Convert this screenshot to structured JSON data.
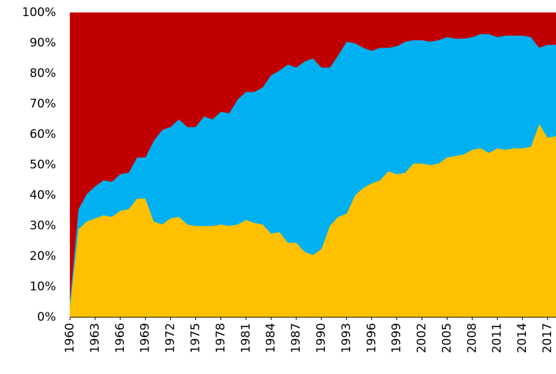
{
  "chart_data": {
    "type": "stacked-area",
    "x": [
      1960,
      1961,
      1962,
      1963,
      1964,
      1965,
      1966,
      1967,
      1968,
      1969,
      1970,
      1971,
      1972,
      1973,
      1974,
      1975,
      1976,
      1977,
      1978,
      1979,
      1980,
      1981,
      1982,
      1983,
      1984,
      1985,
      1986,
      1987,
      1988,
      1989,
      1990,
      1991,
      1992,
      1993,
      1994,
      1995,
      1996,
      1997,
      1998,
      1999,
      2000,
      2001,
      2002,
      2003,
      2004,
      2005,
      2006,
      2007,
      2008,
      2009,
      2010,
      2011,
      2012,
      2013,
      2014,
      2015,
      2016,
      2017,
      2018
    ],
    "series": [
      {
        "color": "#ffc000",
        "values": [
          4,
          29,
          31.5,
          32.5,
          33.5,
          33,
          35,
          35.5,
          39,
          39,
          31.5,
          30.5,
          32.5,
          33,
          30.5,
          30,
          30,
          30,
          30.5,
          30,
          30.5,
          32,
          31,
          30.5,
          27.5,
          28,
          24.5,
          24.5,
          21.5,
          20.5,
          22.5,
          30,
          33,
          34,
          40,
          42.5,
          44,
          45,
          48,
          47,
          47.5,
          50.5,
          50.5,
          50,
          50.5,
          52.5,
          53,
          53.5,
          55,
          55.5,
          54,
          55.5,
          55,
          55.5,
          55.5,
          56,
          63.5,
          59,
          59.5
        ]
      },
      {
        "color": "#00b0f0",
        "values": [
          2,
          6.5,
          9,
          10.5,
          11.5,
          11.5,
          12,
          12,
          13.5,
          13.5,
          26.5,
          31,
          30,
          32,
          32,
          32.5,
          36,
          35,
          37,
          37,
          41,
          42,
          43,
          45,
          52,
          53,
          58.5,
          57.5,
          62.5,
          64.5,
          59.5,
          52,
          53,
          56.5,
          50,
          46,
          43.5,
          43.5,
          40.5,
          42,
          43,
          40.5,
          40.5,
          40.5,
          40.5,
          39.5,
          38.5,
          38,
          37,
          37.5,
          39,
          36.5,
          37.5,
          37,
          37,
          36,
          25,
          30.5,
          30
        ]
      },
      {
        "color": "#c00000",
        "values": [
          94,
          64.5,
          59.5,
          57,
          55,
          55.5,
          53,
          52.5,
          47.5,
          47.5,
          42,
          38.5,
          37.5,
          35,
          37.5,
          37.5,
          34,
          35,
          32.5,
          33,
          28.5,
          26,
          26,
          24.5,
          20.5,
          19,
          17,
          18,
          16,
          15,
          18,
          18,
          14,
          9.5,
          10,
          11.5,
          12.5,
          11.5,
          11.5,
          11,
          9.5,
          9,
          9,
          9.5,
          9,
          8,
          8.5,
          8.5,
          8,
          7,
          7,
          8,
          7.5,
          7.5,
          7.5,
          8,
          11.5,
          10.5,
          10.5
        ]
      }
    ],
    "xlim": [
      1960,
      2018
    ],
    "xticks": [
      1960,
      1963,
      1966,
      1969,
      1972,
      1975,
      1978,
      1981,
      1984,
      1987,
      1990,
      1993,
      1996,
      1999,
      2002,
      2005,
      2008,
      2011,
      2014,
      2017
    ],
    "ylim": [
      0,
      100
    ],
    "yticks": [
      {
        "value": 0,
        "label": "0%"
      },
      {
        "value": 10,
        "label": "10%"
      },
      {
        "value": 20,
        "label": "20%"
      },
      {
        "value": 30,
        "label": "30%"
      },
      {
        "value": 40,
        "label": "40%"
      },
      {
        "value": 50,
        "label": "50%"
      },
      {
        "value": 60,
        "label": "60%"
      },
      {
        "value": 70,
        "label": "70%"
      },
      {
        "value": 80,
        "label": "80%"
      },
      {
        "value": 90,
        "label": "90%"
      },
      {
        "value": 100,
        "label": "100%"
      }
    ]
  }
}
